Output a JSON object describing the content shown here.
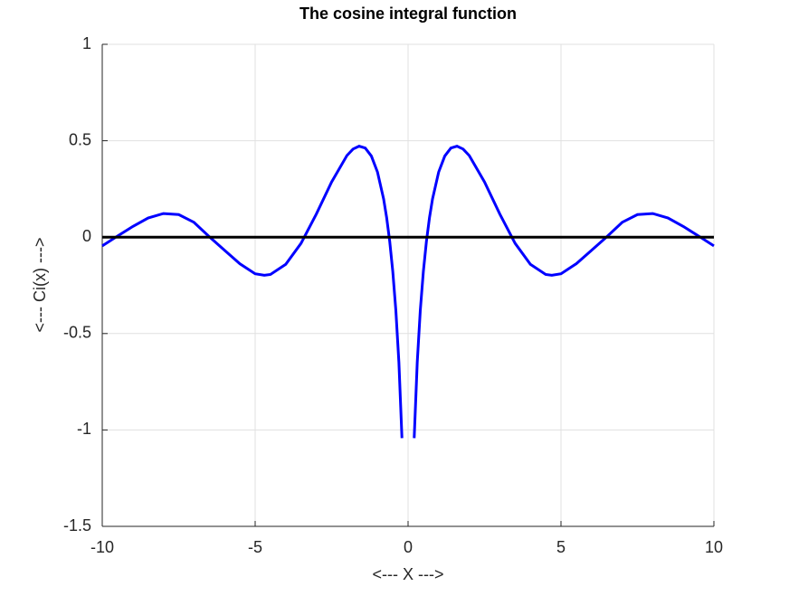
{
  "chart_data": {
    "type": "line",
    "title": "The cosine integral function",
    "xlabel": "<--- X --->",
    "ylabel": "<--- Ci(x) --->",
    "series": [
      {
        "color": "#0000ff",
        "x": [
          -10,
          -9.5,
          -9,
          -8.5,
          -8,
          -7.5,
          -7,
          -6.5,
          -6,
          -5.5,
          -5,
          -4.7,
          -4.5,
          -4,
          -3.5,
          -3,
          -2.5,
          -2,
          -1.8,
          -1.6,
          -1.4,
          -1.2,
          -1,
          -0.8,
          -0.7,
          -0.6,
          -0.5,
          -0.4,
          -0.3,
          -0.2,
          0,
          0.2,
          0.3,
          0.4,
          0.5,
          0.6,
          0.7,
          0.8,
          1,
          1.2,
          1.4,
          1.6,
          1.8,
          2,
          2.5,
          3,
          3.5,
          4,
          4.5,
          4.7,
          5,
          5.5,
          6,
          6.5,
          7,
          7.5,
          8,
          8.5,
          9,
          9.5,
          10
        ],
        "values": [
          -0.0455,
          0.0056,
          0.0553,
          0.0994,
          0.1224,
          0.117,
          0.0767,
          0.002,
          -0.0681,
          -0.138,
          -0.19,
          -0.198,
          -0.1935,
          -0.141,
          -0.0321,
          0.1196,
          0.2859,
          0.423,
          0.4568,
          0.4717,
          0.462,
          0.4205,
          0.3374,
          0.1983,
          0.1005,
          -0.0223,
          -0.1778,
          -0.3788,
          -0.6492,
          -1.0422,
          null,
          -1.0422,
          -0.6492,
          -0.3788,
          -0.1778,
          -0.0223,
          0.1005,
          0.1983,
          0.3374,
          0.4205,
          0.462,
          0.4717,
          0.4568,
          0.423,
          0.2859,
          0.1196,
          -0.0321,
          -0.141,
          -0.1935,
          -0.198,
          -0.19,
          -0.138,
          -0.0681,
          0.002,
          0.0767,
          0.117,
          0.1224,
          0.0994,
          0.0553,
          0.0056,
          -0.0455
        ]
      },
      {
        "color": "#000000",
        "x": [
          -10,
          10
        ],
        "values": [
          0,
          0
        ]
      }
    ],
    "xlim": [
      -10,
      10
    ],
    "xticks": [
      -10,
      -5,
      0,
      5,
      10
    ],
    "ylim": [
      -1.5,
      1
    ],
    "yticks": [
      -1.5,
      -1,
      -0.5,
      0,
      0.5,
      1
    ],
    "grid": true
  }
}
